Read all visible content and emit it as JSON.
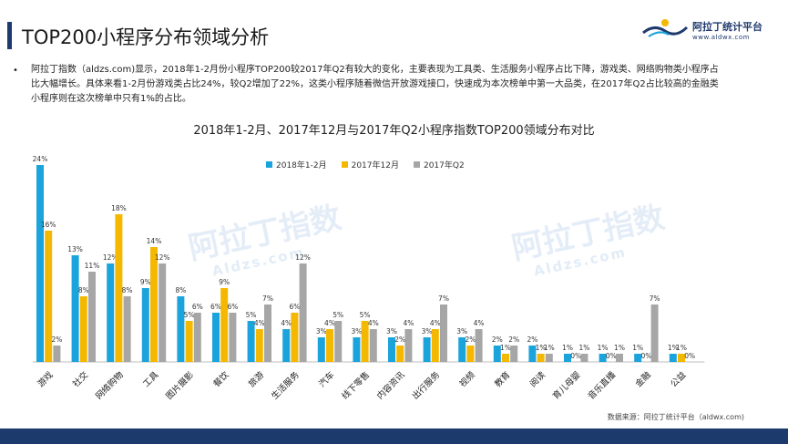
{
  "slide": {
    "title": "TOP200小程序分布领域分析",
    "bullet": "•",
    "description": "阿拉丁指数（aldzs.com)显示，2018年1-2月份小程序TOP200较2017年Q2有较大的变化，主要表现为工具类、生活服务小程序占比下降，游戏类、网络购物类小程序占比大幅增长。具体来看1-2月份游戏类占比24%，较Q2增加了22%，这类小程序随着微信开放游戏接口，快速成为本次榜单中第一大品类，在2017年Q2占比较高的金融类小程序则在这次榜单中只有1%的占比。",
    "source": "数据来源：阿拉丁统计平台（aldwx.com)"
  },
  "logo": {
    "name": "阿拉丁统计平台",
    "url": "www.aldwx.com"
  },
  "watermark": {
    "text": "阿拉丁指数",
    "url": "Aldzs.com"
  },
  "colors": {
    "s1": "#1ba3db",
    "s2": "#f5b800",
    "s3": "#a6a6a6",
    "accent": "#1f3a6d",
    "band": "#1c3a6b"
  },
  "chart_data": {
    "type": "bar",
    "title": "2018年1-2月、2017年12月与2017年Q2小程序指数TOP200领域分布对比",
    "categories": [
      "游戏",
      "社交",
      "网络购物",
      "工具",
      "图片摄影",
      "餐饮",
      "旅游",
      "生活服务",
      "汽车",
      "线下零售",
      "内容资讯",
      "出行服务",
      "视频",
      "教育",
      "阅读",
      "育儿母婴",
      "音乐直播",
      "金融",
      "公益"
    ],
    "series": [
      {
        "name": "2018年1-2月",
        "values": [
          24,
          13,
          12,
          9,
          8,
          6,
          5,
          4,
          3,
          3,
          3,
          3,
          3,
          2,
          2,
          1,
          1,
          1,
          1
        ],
        "labels": [
          "24%",
          "13%",
          "12%",
          "9%",
          "8%",
          "6%",
          "5%",
          "4%",
          "3%",
          "3%",
          "3%",
          "3%",
          "3%",
          "2%",
          "2%",
          "1%",
          "1%",
          "1%",
          "1%"
        ]
      },
      {
        "name": "2017年12月",
        "values": [
          16,
          8,
          18,
          14,
          5,
          9,
          4,
          6,
          4,
          5,
          2,
          4,
          2,
          1,
          1,
          0,
          0,
          0,
          1
        ],
        "labels": [
          "16%",
          "8%",
          "18%",
          "14%",
          "5%",
          "9%",
          "4%",
          "6%",
          "4%",
          "5%",
          "2%",
          "4%",
          "2%",
          "1%",
          "1%",
          "0%",
          "0%",
          "0%",
          "1%"
        ]
      },
      {
        "name": "2017年Q2",
        "values": [
          2,
          11,
          8,
          12,
          6,
          6,
          7,
          12,
          5,
          4,
          4,
          7,
          4,
          2,
          1,
          1,
          1,
          7,
          0
        ],
        "labels": [
          "2%",
          "11%",
          "8%",
          "12%",
          "6%",
          "6%",
          "7%",
          "12%",
          "5%",
          "4%",
          "4%",
          "7%",
          "4%",
          "2%",
          "1%",
          "1%",
          "1%",
          "7%",
          "0%"
        ]
      }
    ],
    "ylim": [
      0,
      25
    ],
    "xlabel": "",
    "ylabel": "",
    "grid": false,
    "legend_position": "top-left"
  }
}
